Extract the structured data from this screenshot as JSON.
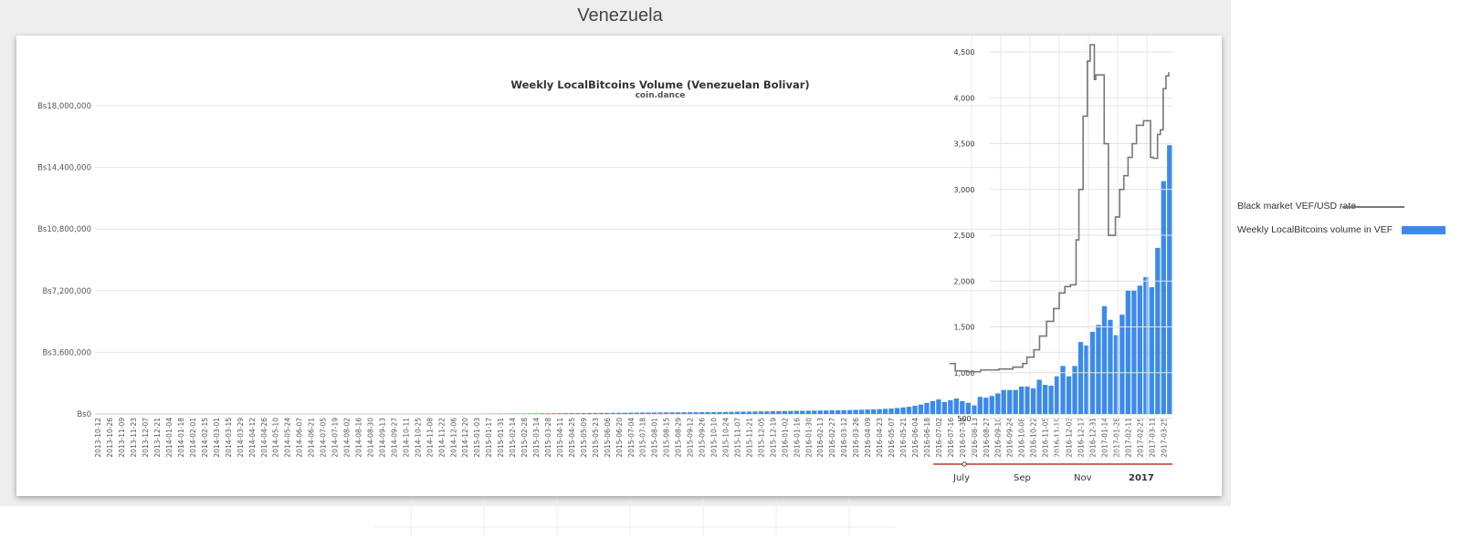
{
  "page": {
    "title": "Venezuela"
  },
  "chart_data": {
    "type": "bar",
    "title": "Weekly LocalBitcoins Volume (Venezuelan Bolivar)",
    "subtitle": "coin.dance",
    "ylabel": "",
    "xlabel": "",
    "ylim": [
      0,
      18000000
    ],
    "y_tick_labels": [
      "Bs0",
      "Bs3,600,000",
      "Bs7,200,000",
      "Bs10,800,000",
      "Bs14,400,000",
      "Bs18,000,000"
    ],
    "y2_tick_labels": [
      "500",
      "1,000",
      "1,500",
      "2,000",
      "2,500",
      "3,000",
      "3,500",
      "4,000",
      "4,500"
    ],
    "y2lim": [
      500,
      4600
    ],
    "x2_tick_labels": [
      "July",
      "Sep",
      "Nov",
      "2017"
    ],
    "x_start": "2013-10-12",
    "x_label_step_weeks": 2,
    "series": [
      {
        "name": "Weekly LocalBitcoins volume in VEF",
        "color": "#3b8aea",
        "values": [
          0,
          0,
          0,
          0,
          0,
          0,
          0,
          0,
          0,
          0,
          0,
          0,
          0,
          0,
          0,
          0,
          0,
          0,
          0,
          0,
          0,
          0,
          0,
          0,
          0,
          0,
          0,
          0,
          0,
          0,
          0,
          0,
          0,
          0,
          0,
          0,
          0,
          0,
          0,
          0,
          0,
          0,
          0,
          0,
          0,
          0,
          0,
          0,
          0,
          0,
          0,
          0,
          0,
          0,
          0,
          0,
          0,
          0,
          0,
          0,
          0,
          0,
          0,
          0,
          5000,
          8000,
          10000,
          12000,
          15000,
          18000,
          20000,
          22000,
          25000,
          28000,
          32000,
          35000,
          38000,
          42000,
          45000,
          48000,
          50000,
          52000,
          55000,
          58000,
          60000,
          62000,
          65000,
          68000,
          70000,
          72000,
          75000,
          78000,
          80000,
          82000,
          85000,
          88000,
          90000,
          92000,
          95000,
          98000,
          100000,
          102000,
          105000,
          108000,
          110000,
          115000,
          120000,
          125000,
          130000,
          135000,
          140000,
          145000,
          150000,
          155000,
          160000,
          165000,
          170000,
          175000,
          180000,
          185000,
          190000,
          195000,
          200000,
          205000,
          210000,
          215000,
          220000,
          230000,
          240000,
          250000,
          260000,
          270000,
          280000,
          300000,
          320000,
          350000,
          380000,
          420000,
          480000,
          550000,
          650000,
          750000,
          850000,
          700000,
          800000,
          900000,
          750000,
          650000,
          500000,
          1000000,
          950000,
          1050000,
          1200000,
          1400000,
          1400000,
          1400000,
          1600000,
          1600000,
          1500000,
          2000000,
          1700000,
          1650000,
          2200000,
          2800000,
          2200000,
          2800000,
          4200000,
          4000000,
          4800000,
          5200000,
          6300000,
          5500000,
          4600000,
          5800000,
          7200000,
          7200000,
          7500000,
          8000000,
          7400000,
          9700000,
          13600000,
          15700000
        ]
      }
    ],
    "overlay": {
      "name": "Black market VEF/USD rate",
      "color": "#777777",
      "points": [
        [
          0,
          1100
        ],
        [
          4,
          1020
        ],
        [
          12,
          1010
        ],
        [
          22,
          1030
        ],
        [
          35,
          1040
        ],
        [
          45,
          1060
        ],
        [
          52,
          1100
        ],
        [
          55,
          1170
        ],
        [
          60,
          1250
        ],
        [
          64,
          1400
        ],
        [
          69,
          1560
        ],
        [
          74,
          1700
        ],
        [
          78,
          1870
        ],
        [
          82,
          1940
        ],
        [
          86,
          1960
        ],
        [
          90,
          2450
        ],
        [
          92,
          3000
        ],
        [
          95,
          3800
        ],
        [
          98,
          4400
        ],
        [
          100,
          4580
        ],
        [
          103,
          4200
        ],
        [
          104,
          4250
        ],
        [
          107,
          4250
        ],
        [
          110,
          3500
        ],
        [
          113,
          2500
        ],
        [
          115,
          2500
        ],
        [
          118,
          2700
        ],
        [
          121,
          3000
        ],
        [
          124,
          3150
        ],
        [
          127,
          3350
        ],
        [
          130,
          3500
        ],
        [
          133,
          3700
        ],
        [
          138,
          3750
        ],
        [
          141,
          3750
        ],
        [
          143,
          3350
        ],
        [
          145,
          3340
        ],
        [
          148,
          3600
        ],
        [
          150,
          3650
        ],
        [
          152,
          4100
        ],
        [
          154,
          4240
        ],
        [
          156,
          4280
        ]
      ]
    },
    "legend_position": "right"
  },
  "legend": {
    "rate_label": "Black market VEF/USD rate",
    "volume_label": "Weekly LocalBitcoins volume in VEF"
  }
}
